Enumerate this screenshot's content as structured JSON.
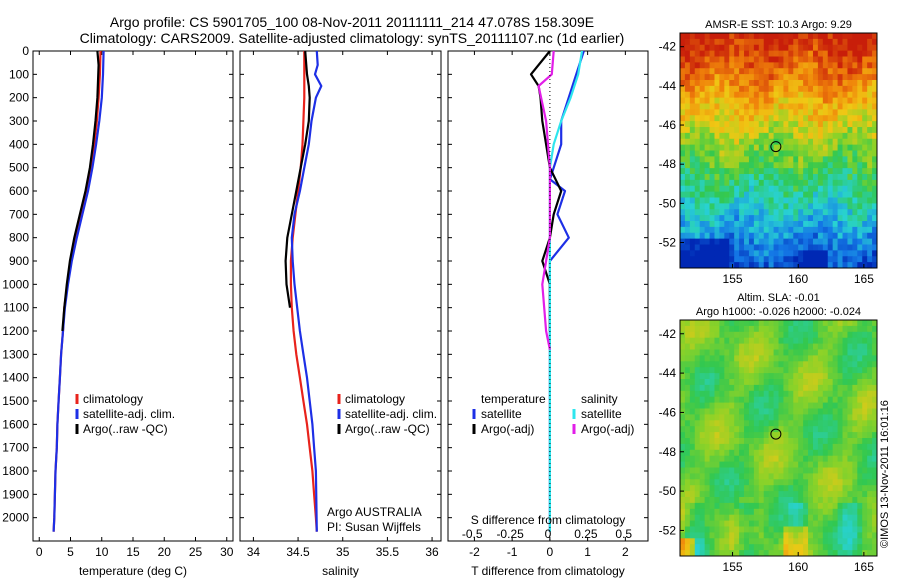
{
  "header": {
    "line1": "Argo profile: CS 5901705_100 08-Nov-2011 20111111_214 47.078S 158.309E",
    "line2": "Climatology: CARS2009. Satellite-adjusted climatology: synTS_20111107.nc (1d earlier)"
  },
  "colors": {
    "climatology": "#e8231c",
    "satellite": "#1d2fe6",
    "argo": "#000000",
    "sat_salinity": "#2ee6ee",
    "argo_salinity": "#e21ee8"
  },
  "chart_data": [
    {
      "type": "line",
      "id": "temperature",
      "xlabel": "temperature (deg C)",
      "xlim": [
        -1,
        31
      ],
      "xticks": [
        0,
        5,
        10,
        15,
        20,
        25,
        30
      ],
      "xtick_labels": [
        "0",
        "5",
        "10",
        "15",
        "20",
        "25",
        "30"
      ],
      "ylim": [
        0,
        2100
      ],
      "yticks": [
        0,
        100,
        200,
        300,
        400,
        500,
        600,
        700,
        800,
        900,
        1000,
        1100,
        1200,
        1300,
        1400,
        1500,
        1600,
        1700,
        1800,
        1900,
        2000
      ],
      "ytick_labels": [
        "0",
        "100",
        "200",
        "300",
        "400",
        "500",
        "600",
        "700",
        "800",
        "900",
        "1000",
        "1100",
        "1200",
        "1300",
        "1400",
        "1500",
        "1600",
        "1700",
        "1800",
        "1900",
        "2000"
      ],
      "legend": [
        "climatology",
        "satellite-adj. clim.",
        "Argo(..raw -QC)"
      ],
      "legend_position": "lower-right",
      "series": [
        {
          "name": "climatology",
          "color_key": "climatology",
          "x": [
            9.8,
            9.7,
            9.5,
            9.2,
            8.8,
            8.3,
            7.6,
            6.7,
            5.8,
            5.0,
            4.5,
            4.0,
            3.8,
            3.5,
            3.3,
            3.1,
            2.9,
            2.8,
            2.6,
            2.5,
            2.4,
            2.3
          ],
          "y": [
            0,
            100,
            200,
            300,
            400,
            500,
            600,
            700,
            800,
            900,
            1000,
            1100,
            1200,
            1300,
            1400,
            1500,
            1600,
            1700,
            1800,
            1900,
            2000,
            2060
          ]
        },
        {
          "name": "satellite-adj. clim.",
          "color_key": "satellite",
          "x": [
            10.3,
            10.2,
            10.0,
            9.6,
            9.1,
            8.5,
            7.8,
            6.9,
            6.0,
            5.2,
            4.6,
            4.1,
            3.8,
            3.5,
            3.3,
            3.1,
            2.9,
            2.8,
            2.6,
            2.5,
            2.4,
            2.3
          ],
          "y": [
            0,
            100,
            200,
            300,
            400,
            500,
            600,
            700,
            800,
            900,
            1000,
            1100,
            1200,
            1300,
            1400,
            1500,
            1600,
            1700,
            1800,
            1900,
            2000,
            2060
          ]
        },
        {
          "name": "Argo(..raw -QC)",
          "color_key": "argo",
          "x": [
            9.3,
            9.5,
            9.3,
            9.0,
            8.6,
            8.1,
            7.4,
            6.5,
            5.6,
            4.9,
            4.4,
            4.0,
            3.7
          ],
          "y": [
            0,
            60,
            200,
            300,
            400,
            500,
            600,
            700,
            800,
            900,
            1000,
            1100,
            1200
          ]
        }
      ]
    },
    {
      "type": "line",
      "id": "salinity",
      "xlabel": "salinity",
      "xlim": [
        33.85,
        36.1
      ],
      "xticks": [
        34,
        34.5,
        35,
        35.5,
        36
      ],
      "xtick_labels": [
        "34",
        "34.5",
        "35",
        "35.5",
        "36"
      ],
      "ylim": [
        0,
        2100
      ],
      "legend": [
        "climatology",
        "satellite-adj. clim.",
        "Argo(..raw -QC)"
      ],
      "legend_position": "lower-right",
      "annotation": [
        "Argo AUSTRALIA",
        "PI: Susan Wijffels"
      ],
      "series": [
        {
          "name": "climatology",
          "color_key": "climatology",
          "x": [
            34.57,
            34.57,
            34.57,
            34.56,
            34.55,
            34.53,
            34.5,
            34.47,
            34.44,
            34.42,
            34.42,
            34.43,
            34.45,
            34.48,
            34.52,
            34.56,
            34.6,
            34.63,
            34.66,
            34.68,
            34.7,
            34.71
          ],
          "y": [
            0,
            100,
            200,
            300,
            400,
            500,
            600,
            700,
            800,
            900,
            1000,
            1100,
            1200,
            1300,
            1400,
            1500,
            1600,
            1700,
            1800,
            1900,
            2000,
            2060
          ]
        },
        {
          "name": "satellite-adj. clim.",
          "color_key": "satellite",
          "x": [
            34.71,
            34.72,
            34.69,
            34.76,
            34.7,
            34.65,
            34.62,
            34.57,
            34.52,
            34.46,
            34.43,
            34.44,
            34.46,
            34.49,
            34.52,
            34.56,
            34.6,
            34.63,
            34.66,
            34.68,
            34.7,
            34.71
          ],
          "y": [
            0,
            60,
            100,
            150,
            200,
            300,
            400,
            500,
            600,
            700,
            800,
            900,
            1000,
            1100,
            1200,
            1300,
            1400,
            1500,
            1600,
            1700,
            1800,
            2060
          ]
        },
        {
          "name": "Argo(..raw -QC)",
          "color_key": "argo",
          "x": [
            34.58,
            34.6,
            34.62,
            34.63,
            34.62,
            34.58,
            34.53,
            34.48,
            34.43,
            34.38,
            34.36,
            34.37,
            34.41
          ],
          "y": [
            0,
            100,
            150,
            200,
            300,
            400,
            500,
            600,
            700,
            800,
            900,
            1000,
            1100
          ]
        }
      ]
    },
    {
      "type": "line",
      "id": "difference",
      "xlabel": "T difference from climatology",
      "xlim": [
        -2.7,
        2.6
      ],
      "xticks": [
        -2,
        -1,
        0,
        1,
        2
      ],
      "xtick_labels": [
        "-2",
        "-1",
        "0",
        "1",
        "2"
      ],
      "top_label": "S difference from climatology",
      "top_ticks": [
        -0.5,
        -0.25,
        0,
        0.25,
        0.5
      ],
      "top_tick_labels": [
        "-0.5",
        "-0.25",
        "0",
        "0.25",
        "0.5"
      ],
      "ylim": [
        0,
        2100
      ],
      "legend": {
        "temperature_title": "temperature",
        "salinity_title": "salinity",
        "items": [
          "satellite",
          "Argo(-adj)",
          "satellite",
          "Argo(-adj)"
        ]
      },
      "legend_position": "lower-center",
      "series": [
        {
          "name": "satellite",
          "color_key": "satellite",
          "x": [
            0.9,
            0.6,
            0.3,
            0.3,
            0.1,
            0.0,
            0.4,
            0.2,
            0.5,
            0.0,
            0.0,
            0.0,
            0.0,
            0.0,
            0.0
          ],
          "y": [
            0,
            150,
            300,
            400,
            500,
            550,
            600,
            700,
            800,
            900,
            1000,
            1300,
            1600,
            1900,
            2060
          ]
        },
        {
          "name": "Argo(-adj)",
          "color_key": "argo",
          "x": [
            0.0,
            -0.5,
            -0.3,
            -0.25,
            -0.2,
            0.0,
            0.3,
            0.1,
            0.0,
            -0.2,
            0.0,
            0.0
          ],
          "y": [
            0,
            100,
            150,
            200,
            300,
            500,
            600,
            700,
            800,
            900,
            1000,
            1200
          ]
        },
        {
          "name": "satellite",
          "color_key": "sat_salinity",
          "x": [
            0.85,
            0.75,
            0.55,
            0.3,
            0.1,
            0.0,
            0.0,
            0.0,
            0.0,
            0.0
          ],
          "y": [
            0,
            100,
            200,
            300,
            400,
            500,
            800,
            1100,
            1600,
            2060
          ]
        },
        {
          "name": "Argo(-adj)",
          "color_key": "argo_salinity",
          "x": [
            0.1,
            0.05,
            -0.3,
            -0.1,
            0.0,
            0.0,
            -0.2,
            -0.1,
            0.0
          ],
          "y": [
            0,
            100,
            150,
            300,
            500,
            800,
            1000,
            1200,
            1280
          ]
        }
      ]
    },
    {
      "type": "heatmap",
      "id": "sst-map",
      "title": "AMSR-E SST: 10.3 Argo: 9.29",
      "xlim": [
        151,
        166
      ],
      "xticks": [
        155,
        160,
        165
      ],
      "xtick_labels": [
        "155",
        "160",
        "165"
      ],
      "ylim": [
        -53.3,
        -41.3
      ],
      "yticks": [
        -42,
        -44,
        -46,
        -48,
        -50,
        -52
      ],
      "ytick_labels": [
        "-42",
        "-44",
        "-46",
        "-48",
        "-50",
        "-52"
      ],
      "marker": {
        "lon": 158.3,
        "lat": -47.1
      }
    },
    {
      "type": "heatmap",
      "id": "sla-map",
      "title": "Altim. SLA: -0.01",
      "subtitle": "Argo h1000: -0.026 h2000: -0.024",
      "xlim": [
        151,
        166
      ],
      "xticks": [
        155,
        160,
        165
      ],
      "xtick_labels": [
        "155",
        "160",
        "165"
      ],
      "ylim": [
        -53.3,
        -41.3
      ],
      "yticks": [
        -42,
        -44,
        -46,
        -48,
        -50,
        -52
      ],
      "ytick_labels": [
        "-42",
        "-44",
        "-46",
        "-48",
        "-50",
        "-52"
      ],
      "marker": {
        "lon": 158.3,
        "lat": -47.1
      }
    }
  ],
  "footer": {
    "credit": "©IMOS 13-Nov-2011 16:01:16"
  }
}
